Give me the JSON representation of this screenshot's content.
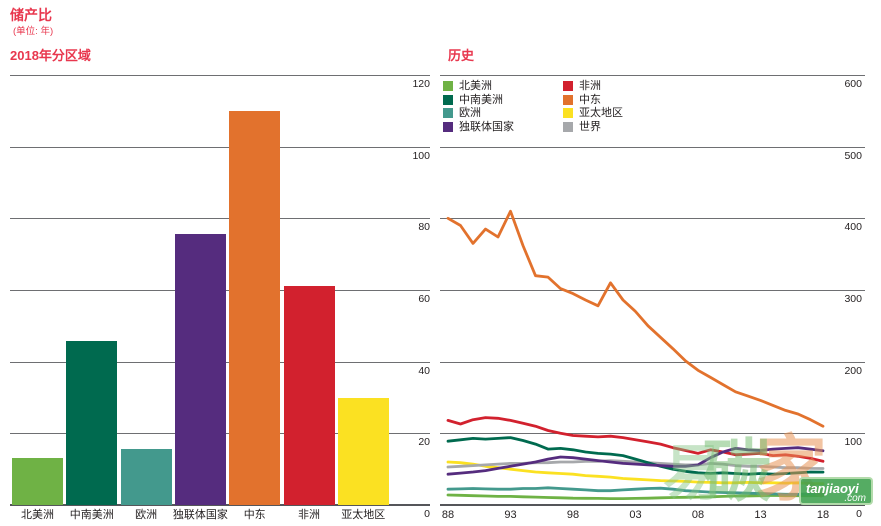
{
  "header": {
    "title": "储产比",
    "unit": "(单位: 年)"
  },
  "colors": {
    "heading_red": "#e8374e",
    "gridline": "#6e6f72",
    "baseline": "#55565a",
    "tick_text": "#231f20",
    "watermark_green": "#3ea04d"
  },
  "chart_data": [
    {
      "type": "bar",
      "title": "2018年分区域",
      "categories": [
        "北美洲",
        "中南美洲",
        "欧洲",
        "独联体国家",
        "中东",
        "非洲",
        "亚太地区"
      ],
      "values": [
        13.2,
        45.9,
        15.6,
        75.6,
        109.9,
        61.0,
        29.8
      ],
      "colors": [
        "#6fb245",
        "#006a4f",
        "#43998d",
        "#552c7e",
        "#e2722d",
        "#d2212e",
        "#fbe122"
      ],
      "xlabel": "",
      "ylabel": "",
      "ylim": [
        0,
        120
      ],
      "yticks": [
        0,
        20,
        40,
        60,
        80,
        100,
        120
      ],
      "grid": true,
      "y_axis_side": "right"
    },
    {
      "type": "line",
      "title": "历史",
      "x_start": 1988,
      "x_end": 2018,
      "xticks": [
        {
          "label": "88",
          "year": 1988
        },
        {
          "label": "93",
          "year": 1993
        },
        {
          "label": "98",
          "year": 1998
        },
        {
          "label": "03",
          "year": 2003
        },
        {
          "label": "08",
          "year": 2008
        },
        {
          "label": "13",
          "year": 2013
        },
        {
          "label": "18",
          "year": 2018
        }
      ],
      "ylim": [
        0,
        600
      ],
      "yticks": [
        0,
        100,
        200,
        300,
        400,
        500,
        600
      ],
      "grid": true,
      "y_axis_side": "right",
      "legend_position": "top-left-two-columns",
      "series": [
        {
          "name": "北美洲",
          "color": "#6fb245",
          "values": [
            14,
            13.5,
            13,
            12.5,
            12,
            12,
            11.5,
            11,
            10.5,
            10,
            9.5,
            9.3,
            9.2,
            9,
            9,
            9.2,
            9.5,
            10,
            10.5,
            10.8,
            11,
            11.5,
            12,
            12.5,
            12.5,
            13,
            13.5,
            13,
            13,
            13,
            13.2
          ]
        },
        {
          "name": "中南美洲",
          "color": "#006a4f",
          "values": [
            89,
            91,
            93,
            92,
            93,
            94,
            90,
            85,
            78,
            79,
            77,
            74,
            72,
            71,
            69,
            64,
            59,
            54,
            50,
            47,
            45,
            44,
            45,
            44,
            43,
            44,
            43,
            44,
            45,
            46,
            45.9
          ]
        },
        {
          "name": "欧洲",
          "color": "#43998d",
          "values": [
            22,
            22.5,
            23,
            22.5,
            22,
            22,
            23,
            23,
            24,
            23,
            22,
            21,
            20,
            20,
            21,
            22,
            23,
            23.5,
            22,
            20,
            19,
            18,
            17.5,
            17,
            16.5,
            16,
            15.5,
            15,
            15,
            15.5,
            15.6
          ]
        },
        {
          "name": "独联体国家",
          "color": "#552c7e",
          "values": [
            43,
            44.5,
            46,
            48,
            51,
            54,
            57,
            60,
            64,
            67,
            66,
            64,
            62,
            60,
            58,
            57,
            56,
            55,
            54,
            54,
            56,
            66,
            74,
            79,
            77,
            76,
            78,
            79,
            80,
            78,
            75.6
          ]
        },
        {
          "name": "非洲",
          "color": "#d2212e",
          "values": [
            118,
            113,
            119,
            122,
            121,
            118,
            114,
            110,
            104,
            100,
            97,
            96,
            95,
            96,
            94,
            91,
            88,
            85,
            80,
            76,
            72,
            77,
            74,
            70,
            71,
            72,
            69,
            70,
            68,
            65,
            61
          ]
        },
        {
          "name": "中东",
          "color": "#e2722d",
          "values": [
            400,
            390,
            365,
            385,
            374,
            410,
            362,
            320,
            318,
            302,
            295,
            286,
            278,
            310,
            286,
            270,
            250,
            234,
            218,
            201,
            188,
            178,
            168,
            158,
            152,
            146,
            139,
            132,
            127,
            119,
            110
          ]
        },
        {
          "name": "亚太地区",
          "color": "#fbe122",
          "values": [
            60,
            59,
            57,
            54,
            52,
            50,
            48,
            46,
            45,
            44,
            43,
            41,
            40,
            39,
            37,
            36,
            35,
            34,
            33.5,
            33,
            32,
            31.5,
            31,
            31,
            31.5,
            31,
            31,
            30.5,
            31,
            30,
            29.8
          ]
        },
        {
          "name": "世界",
          "color": "#a6a8ab",
          "values": [
            53,
            54,
            55,
            56,
            57,
            58,
            58,
            59,
            59,
            60,
            60,
            61,
            61,
            62,
            61,
            60,
            59,
            58,
            57,
            56,
            56,
            58,
            57,
            55,
            54,
            54,
            53,
            52,
            52,
            51,
            50.9
          ]
        }
      ]
    }
  ],
  "watermark": {
    "glyphs": [
      {
        "ch": "易",
        "color": "rgba(130,196,130,0.45)"
      },
      {
        "ch": "碳",
        "color": "rgba(110,185,105,0.5)"
      },
      {
        "ch": "家",
        "color": "rgba(232,148,85,0.55)"
      }
    ],
    "box_line1": "tanjiaoyi",
    "box_line2": ".com"
  }
}
